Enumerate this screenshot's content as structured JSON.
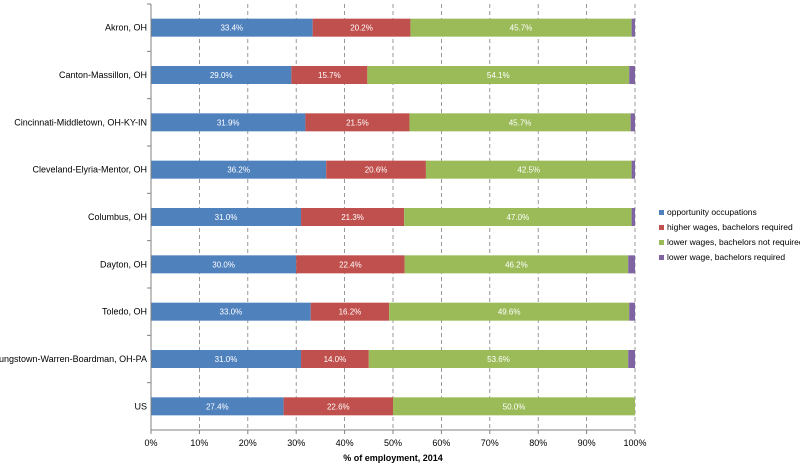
{
  "chart_data": {
    "type": "bar",
    "orientation": "horizontal",
    "stacked": true,
    "categories": [
      "Akron, OH",
      "Canton-Massillon, OH",
      "Cincinnati-Middletown, OH-KY-IN",
      "Cleveland-Elyria-Mentor, OH",
      "Columbus, OH",
      "Dayton, OH",
      "Toledo, OH",
      "Youngstown-Warren-Boardman, OH-PA",
      "US"
    ],
    "series": [
      {
        "name": "opportunity occupations",
        "color": "#4F81BD",
        "values": [
          33.4,
          29.0,
          31.9,
          36.2,
          31.0,
          30.0,
          33.0,
          31.0,
          27.4
        ],
        "labels": [
          "33.4%",
          "29.0%",
          "31.9%",
          "36.2%",
          "31.0%",
          "30.0%",
          "33.0%",
          "31.0%",
          "27.4%"
        ]
      },
      {
        "name": "higher wages, bachelors required",
        "color": "#C0504D",
        "values": [
          20.2,
          15.7,
          21.5,
          20.6,
          21.3,
          22.4,
          16.2,
          14.0,
          22.6
        ],
        "labels": [
          "20.2%",
          "15.7%",
          "21.5%",
          "20.6%",
          "21.3%",
          "22.4%",
          "16.2%",
          "14.0%",
          "22.6%"
        ]
      },
      {
        "name": "lower wages, bachelors not required",
        "color": "#9BBB59",
        "values": [
          45.7,
          54.1,
          45.7,
          42.5,
          47.0,
          46.2,
          49.6,
          53.6,
          50.0
        ],
        "labels": [
          "45.7%",
          "54.1%",
          "45.7%",
          "42.5%",
          "47.0%",
          "46.2%",
          "49.6%",
          "53.6%",
          "50.0%"
        ]
      },
      {
        "name": "lower wage, bachelors required",
        "color": "#8064A2",
        "values": [
          0.7,
          1.2,
          0.9,
          0.7,
          0.7,
          1.4,
          1.2,
          1.4,
          0.0
        ]
      }
    ],
    "xlabel": "% of employment, 2014",
    "ylabel": "",
    "xlim": [
      0,
      100
    ],
    "xticks": [
      "0%",
      "10%",
      "20%",
      "30%",
      "40%",
      "50%",
      "60%",
      "70%",
      "80%",
      "90%",
      "100%"
    ],
    "grid": "vertical dashed",
    "legend_position": "right"
  }
}
